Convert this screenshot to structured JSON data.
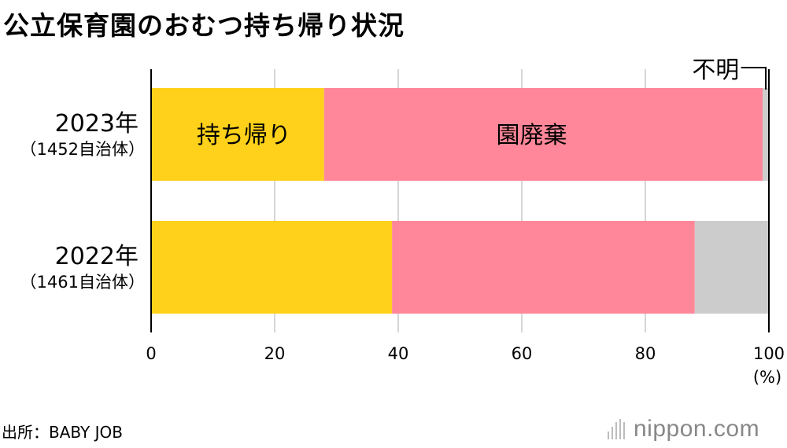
{
  "title": "公立保育園のおむつ持ち帰り状況",
  "source": "出所：BABY JOB",
  "brand": "nippon.com",
  "chart_data": {
    "type": "bar",
    "orientation": "horizontal",
    "stacked": true,
    "categories": [
      {
        "label": "2023年",
        "sublabel": "（1452自治体）"
      },
      {
        "label": "2022年",
        "sublabel": "（1461自治体）"
      }
    ],
    "series": [
      {
        "name": "持ち帰り",
        "color": "#ffd11a",
        "values": [
          28,
          39
        ]
      },
      {
        "name": "園廃棄",
        "color": "#ff8799",
        "values": [
          71,
          49
        ]
      },
      {
        "name": "不明",
        "color": "#cccccc",
        "values": [
          1,
          12
        ]
      }
    ],
    "xlim": [
      0,
      100
    ],
    "xticks": [
      "0",
      "20",
      "40",
      "60",
      "80",
      "100"
    ],
    "x_unit": "(%)",
    "grid": true,
    "colors": {
      "axis": "#000000",
      "grid": "#c8c8c8"
    }
  }
}
